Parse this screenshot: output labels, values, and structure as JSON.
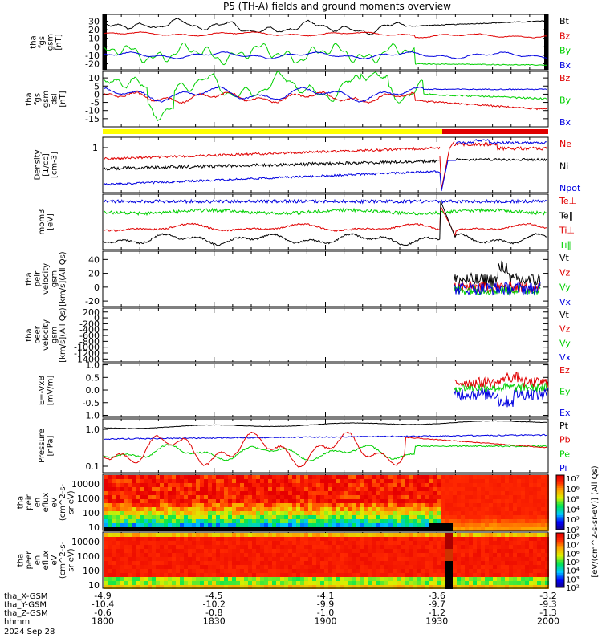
{
  "title": "P5 (TH-A) fields and ground moments overview",
  "colors": {
    "black": "#000000",
    "red": "#e00000",
    "blue": "#0000e0",
    "green": "#00d000",
    "yellow": "#ffff00",
    "barred": "#e00000"
  },
  "chart_data": {
    "type": "line",
    "x_axis": {
      "tick_labels_hhmm": [
        "1800",
        "1830",
        "1900",
        "1930",
        "2000"
      ],
      "range_hhmm": [
        "1800",
        "2000"
      ],
      "ephemeris": [
        {
          "label": "tha_X-GSM",
          "values": [
            "-4.9",
            "-4.5",
            "-4.1",
            "-3.6",
            "-3.2"
          ]
        },
        {
          "label": "tha_Y-GSM",
          "values": [
            "-10.4",
            "-10.2",
            "-9.9",
            "-9.7",
            "-9.3"
          ]
        },
        {
          "label": "tha_Z-GSM",
          "values": [
            "-0.6",
            "-0.8",
            "-1.0",
            "-1.2",
            "-1.3"
          ]
        },
        {
          "label": "hhmm",
          "values": [
            "1800",
            "1830",
            "1900",
            "1930",
            "2000"
          ]
        }
      ],
      "date": "2024 Sep 28"
    },
    "panels": [
      {
        "name": "fgs-gsm",
        "ylabel_lines": [
          "tha",
          "fgs",
          "gsm",
          "[nT]"
        ],
        "yticks": [
          "30",
          "20",
          "10",
          "0",
          "-10",
          "-20"
        ],
        "ylim": [
          -27,
          38
        ],
        "series": [
          {
            "name": "Bt",
            "color": "black"
          },
          {
            "name": "Bz",
            "color": "red"
          },
          {
            "name": "By",
            "color": "green"
          },
          {
            "name": "Bx",
            "color": "blue"
          }
        ]
      },
      {
        "name": "fgs-dsl",
        "ylabel_lines": [
          "tha",
          "fgs",
          "gsm",
          "dsl",
          "[nT]"
        ],
        "yticks": [
          "10",
          "5",
          "0",
          "-5",
          "-10",
          "-15"
        ],
        "ylim": [
          -20,
          14
        ],
        "series": [
          {
            "name": "Bz",
            "color": "red"
          },
          {
            "name": "By",
            "color": "green"
          },
          {
            "name": "Bx",
            "color": "blue"
          }
        ]
      },
      {
        "name": "density",
        "ylabel_lines": [
          "Density",
          "[1/cc]",
          "[cm-3]"
        ],
        "yticks": [
          "1"
        ],
        "scale": "log",
        "series": [
          {
            "name": "Ne",
            "color": "red"
          },
          {
            "name": "Ni",
            "color": "black"
          },
          {
            "name": "Npot",
            "color": "blue"
          }
        ]
      },
      {
        "name": "temperature",
        "ylabel_lines": [
          "mom3",
          "[eV]"
        ],
        "yticks": [],
        "series": [
          {
            "name": "Te⊥",
            "color": "red"
          },
          {
            "name": "Te∥",
            "color": "black"
          },
          {
            "name": "Ti⊥",
            "color": "red"
          },
          {
            "name": "Ti∥",
            "color": "green"
          }
        ]
      },
      {
        "name": "peir-velocity",
        "ylabel_lines": [
          "tha",
          "peir",
          "velocity",
          "gsm",
          "[km/s](All Qs)"
        ],
        "yticks": [
          "40",
          "20",
          "0",
          "-20"
        ],
        "ylim": [
          -28,
          52
        ],
        "series": [
          {
            "name": "Vt",
            "color": "black"
          },
          {
            "name": "Vz",
            "color": "red"
          },
          {
            "name": "Vy",
            "color": "green"
          },
          {
            "name": "Vx",
            "color": "blue"
          }
        ]
      },
      {
        "name": "peer-velocity",
        "ylabel_lines": [
          "tha",
          "peer",
          "velocity",
          "gsm",
          "[km/s](All Qs)"
        ],
        "yticks": [
          "200",
          "0",
          "-200",
          "-400",
          "-600",
          "-800",
          "-1000",
          "-1200",
          "-1400"
        ],
        "ylim": [
          -1500,
          330
        ],
        "series": [
          {
            "name": "Vt",
            "color": "black"
          },
          {
            "name": "Vz",
            "color": "red"
          },
          {
            "name": "Vy",
            "color": "green"
          },
          {
            "name": "Vx",
            "color": "blue"
          }
        ]
      },
      {
        "name": "efield",
        "ylabel_lines": [
          "E=-VxB",
          "[mV/m]"
        ],
        "yticks": [
          "1.0",
          "0.5",
          "0.0",
          "-0.5",
          "-1.0"
        ],
        "ylim": [
          -1.08,
          1.05
        ],
        "series": [
          {
            "name": "Ez",
            "color": "red"
          },
          {
            "name": "Ey",
            "color": "green"
          },
          {
            "name": "Ex",
            "color": "blue"
          }
        ]
      },
      {
        "name": "pressure",
        "ylabel_lines": [
          "Pressure",
          "[nPa]"
        ],
        "yticks": [
          "1.0",
          "0.1"
        ],
        "scale": "log",
        "series": [
          {
            "name": "Pt",
            "color": "black"
          },
          {
            "name": "Pb",
            "color": "red"
          },
          {
            "name": "Pe",
            "color": "green"
          },
          {
            "name": "Pi",
            "color": "blue"
          }
        ]
      },
      {
        "name": "peir-spectrogram",
        "type": "heatmap",
        "ylabel_lines": [
          "tha",
          "peir",
          "en",
          "eflux",
          "eV",
          "(cm^2-s-",
          "sr-eV)"
        ],
        "yticks": [
          "10000",
          "1000",
          "100",
          "10"
        ],
        "scale": "log"
      },
      {
        "name": "peer-spectrogram",
        "type": "heatmap",
        "ylabel_lines": [
          "tha",
          "peer",
          "en",
          "eflux",
          "eV",
          "(cm^2-s-",
          "sr-eV)"
        ],
        "yticks": [
          "10000",
          "1000",
          "100",
          "10"
        ],
        "scale": "log"
      }
    ],
    "colorbar": {
      "units_label": "[eV/(cm^2-s-sr-eV)] (All Qs)",
      "top_ticks": [
        "10⁷",
        "10⁶",
        "10⁵",
        "10⁴",
        "10³",
        "10²"
      ],
      "bottom_ticks": [
        "10⁸",
        "10⁷",
        "10⁶",
        "10⁵",
        "10⁴",
        "10³",
        "10²"
      ]
    }
  }
}
